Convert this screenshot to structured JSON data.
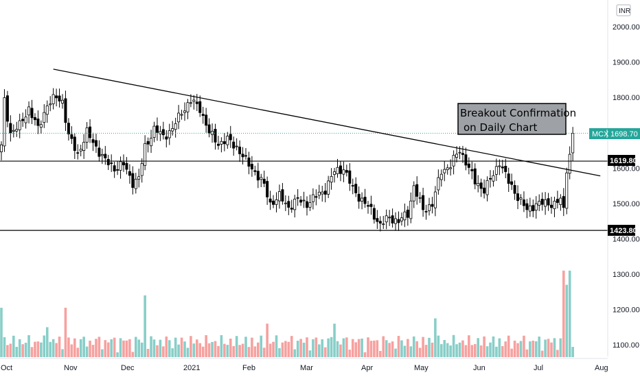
{
  "chart_data": {
    "type": "candlestick",
    "currency_label": "INR",
    "y_ticks": [
      "2000.00",
      "1900.00",
      "1800.00",
      "1700.00",
      "1600.00",
      "1500.00",
      "1400.00",
      "1300.00",
      "1200.00",
      "1100.00"
    ],
    "price_axis_ticks": [
      2000,
      1900,
      1800,
      1700,
      1600,
      1500,
      1400
    ],
    "x_labels": [
      "Oct",
      "Nov",
      "Dec",
      "2021",
      "Feb",
      "Mar",
      "Apr",
      "May",
      "Jun",
      "Jul",
      "Aug"
    ],
    "current_price": {
      "symbol": "MCX",
      "value": "1698.70",
      "price": 1698.7
    },
    "horizontal_levels": [
      {
        "label": "1619.80",
        "price": 1619.8
      },
      {
        "label": "1423.80",
        "price": 1423.8
      }
    ],
    "trendline": {
      "start": {
        "bar": 17,
        "price": 1880
      },
      "end": {
        "bar": 196,
        "price": 1578
      }
    },
    "annotation": {
      "line1": "Breakout Confirmation",
      "line2": "on Daily Chart"
    },
    "anchor_closes": [
      [
        0,
        1660
      ],
      [
        1,
        1790
      ],
      [
        3,
        1700
      ],
      [
        6,
        1720
      ],
      [
        9,
        1770
      ],
      [
        12,
        1710
      ],
      [
        15,
        1780
      ],
      [
        18,
        1800
      ],
      [
        20,
        1790
      ],
      [
        22,
        1690
      ],
      [
        25,
        1640
      ],
      [
        28,
        1700
      ],
      [
        31,
        1660
      ],
      [
        34,
        1620
      ],
      [
        37,
        1600
      ],
      [
        40,
        1610
      ],
      [
        43,
        1560
      ],
      [
        45,
        1570
      ],
      [
        47,
        1660
      ],
      [
        50,
        1710
      ],
      [
        53,
        1690
      ],
      [
        56,
        1710
      ],
      [
        59,
        1760
      ],
      [
        62,
        1790
      ],
      [
        65,
        1770
      ],
      [
        68,
        1700
      ],
      [
        71,
        1670
      ],
      [
        74,
        1680
      ],
      [
        77,
        1660
      ],
      [
        80,
        1620
      ],
      [
        83,
        1590
      ],
      [
        86,
        1550
      ],
      [
        88,
        1500
      ],
      [
        91,
        1520
      ],
      [
        94,
        1490
      ],
      [
        97,
        1510
      ],
      [
        100,
        1500
      ],
      [
        103,
        1520
      ],
      [
        106,
        1540
      ],
      [
        109,
        1590
      ],
      [
        112,
        1600
      ],
      [
        115,
        1540
      ],
      [
        118,
        1510
      ],
      [
        121,
        1480
      ],
      [
        124,
        1440
      ],
      [
        127,
        1460
      ],
      [
        130,
        1450
      ],
      [
        133,
        1470
      ],
      [
        135,
        1550
      ],
      [
        138,
        1480
      ],
      [
        141,
        1500
      ],
      [
        144,
        1590
      ],
      [
        147,
        1610
      ],
      [
        150,
        1650
      ],
      [
        152,
        1620
      ],
      [
        155,
        1560
      ],
      [
        158,
        1540
      ],
      [
        161,
        1580
      ],
      [
        163,
        1620
      ],
      [
        166,
        1560
      ],
      [
        169,
        1520
      ],
      [
        172,
        1480
      ],
      [
        175,
        1500
      ],
      [
        178,
        1500
      ],
      [
        181,
        1500
      ],
      [
        183,
        1510
      ],
      [
        184,
        1480
      ],
      [
        185,
        1600
      ],
      [
        186,
        1640
      ],
      [
        187,
        1698.7
      ]
    ],
    "volume_spikes": [
      [
        0,
        1205
      ],
      [
        15,
        1150
      ],
      [
        21,
        1205
      ],
      [
        47,
        1240
      ],
      [
        87,
        1160
      ],
      [
        109,
        1160
      ],
      [
        142,
        1175
      ],
      [
        184,
        1310
      ],
      [
        185,
        1270
      ],
      [
        186,
        1310
      ]
    ],
    "volume_up_color": "#26a69a",
    "volume_down_color": "#ef5350",
    "candle_up_color": "#000000",
    "candle_down_color": "#000000",
    "price_tag_color": "#26a69a",
    "annotation_box_color": "#9ea2a6"
  }
}
